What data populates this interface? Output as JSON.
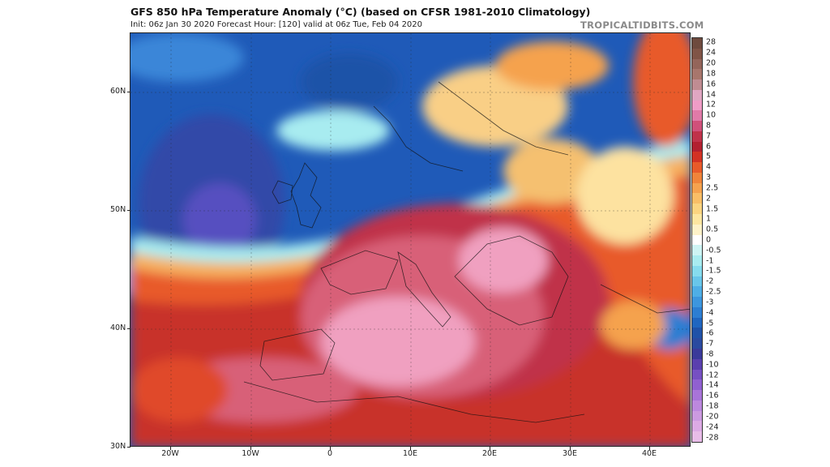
{
  "header": {
    "title": "GFS 850 hPa Temperature Anomaly (°C) (based on CFSR 1981-2010 Climatology)",
    "subtitle": "Init: 06z Jan 30 2020   Forecast Hour: [120]   valid at 06z Tue, Feb 04 2020",
    "watermark": "TROPICALTIDBITS.COM"
  },
  "map": {
    "lat_labels": [
      "60N",
      "50N",
      "40N",
      "30N"
    ],
    "lon_labels": [
      "20W",
      "10W",
      "0",
      "10E",
      "20E",
      "30E",
      "40E"
    ]
  },
  "colorbar": {
    "labels": [
      "28",
      "24",
      "20",
      "18",
      "16",
      "14",
      "12",
      "10",
      "8",
      "7",
      "6",
      "5",
      "4",
      "3",
      "2.5",
      "2",
      "1.5",
      "1",
      "0.5",
      "0",
      "-0.5",
      "-1",
      "-1.5",
      "-2",
      "-2.5",
      "-3",
      "-4",
      "-5",
      "-6",
      "-7",
      "-8",
      "-10",
      "-12",
      "-14",
      "-16",
      "-18",
      "-20",
      "-24",
      "-28"
    ],
    "colors": [
      "#6e4a3e",
      "#805446",
      "#94655a",
      "#a8766c",
      "#c08c92",
      "#e0a6c2",
      "#f09cc6",
      "#e07aa8",
      "#d0507a",
      "#c0324a",
      "#b22030",
      "#d23224",
      "#e85a2a",
      "#f0843a",
      "#f5a24e",
      "#f9be66",
      "#fbd480",
      "#fde6a0",
      "#fef2c8",
      "#ffffff",
      "#cdf4f4",
      "#a8ecf0",
      "#86dcee",
      "#68c6ea",
      "#4eaee6",
      "#3c96de",
      "#2c7ed2",
      "#2066c0",
      "#1f52a8",
      "#2a4aa0",
      "#3a3a9a",
      "#5a40ae",
      "#7650c2",
      "#9060d0",
      "#a874d8",
      "#bc88de",
      "#cc9ae0",
      "#dcaae4",
      "#e8bce8"
    ]
  }
}
